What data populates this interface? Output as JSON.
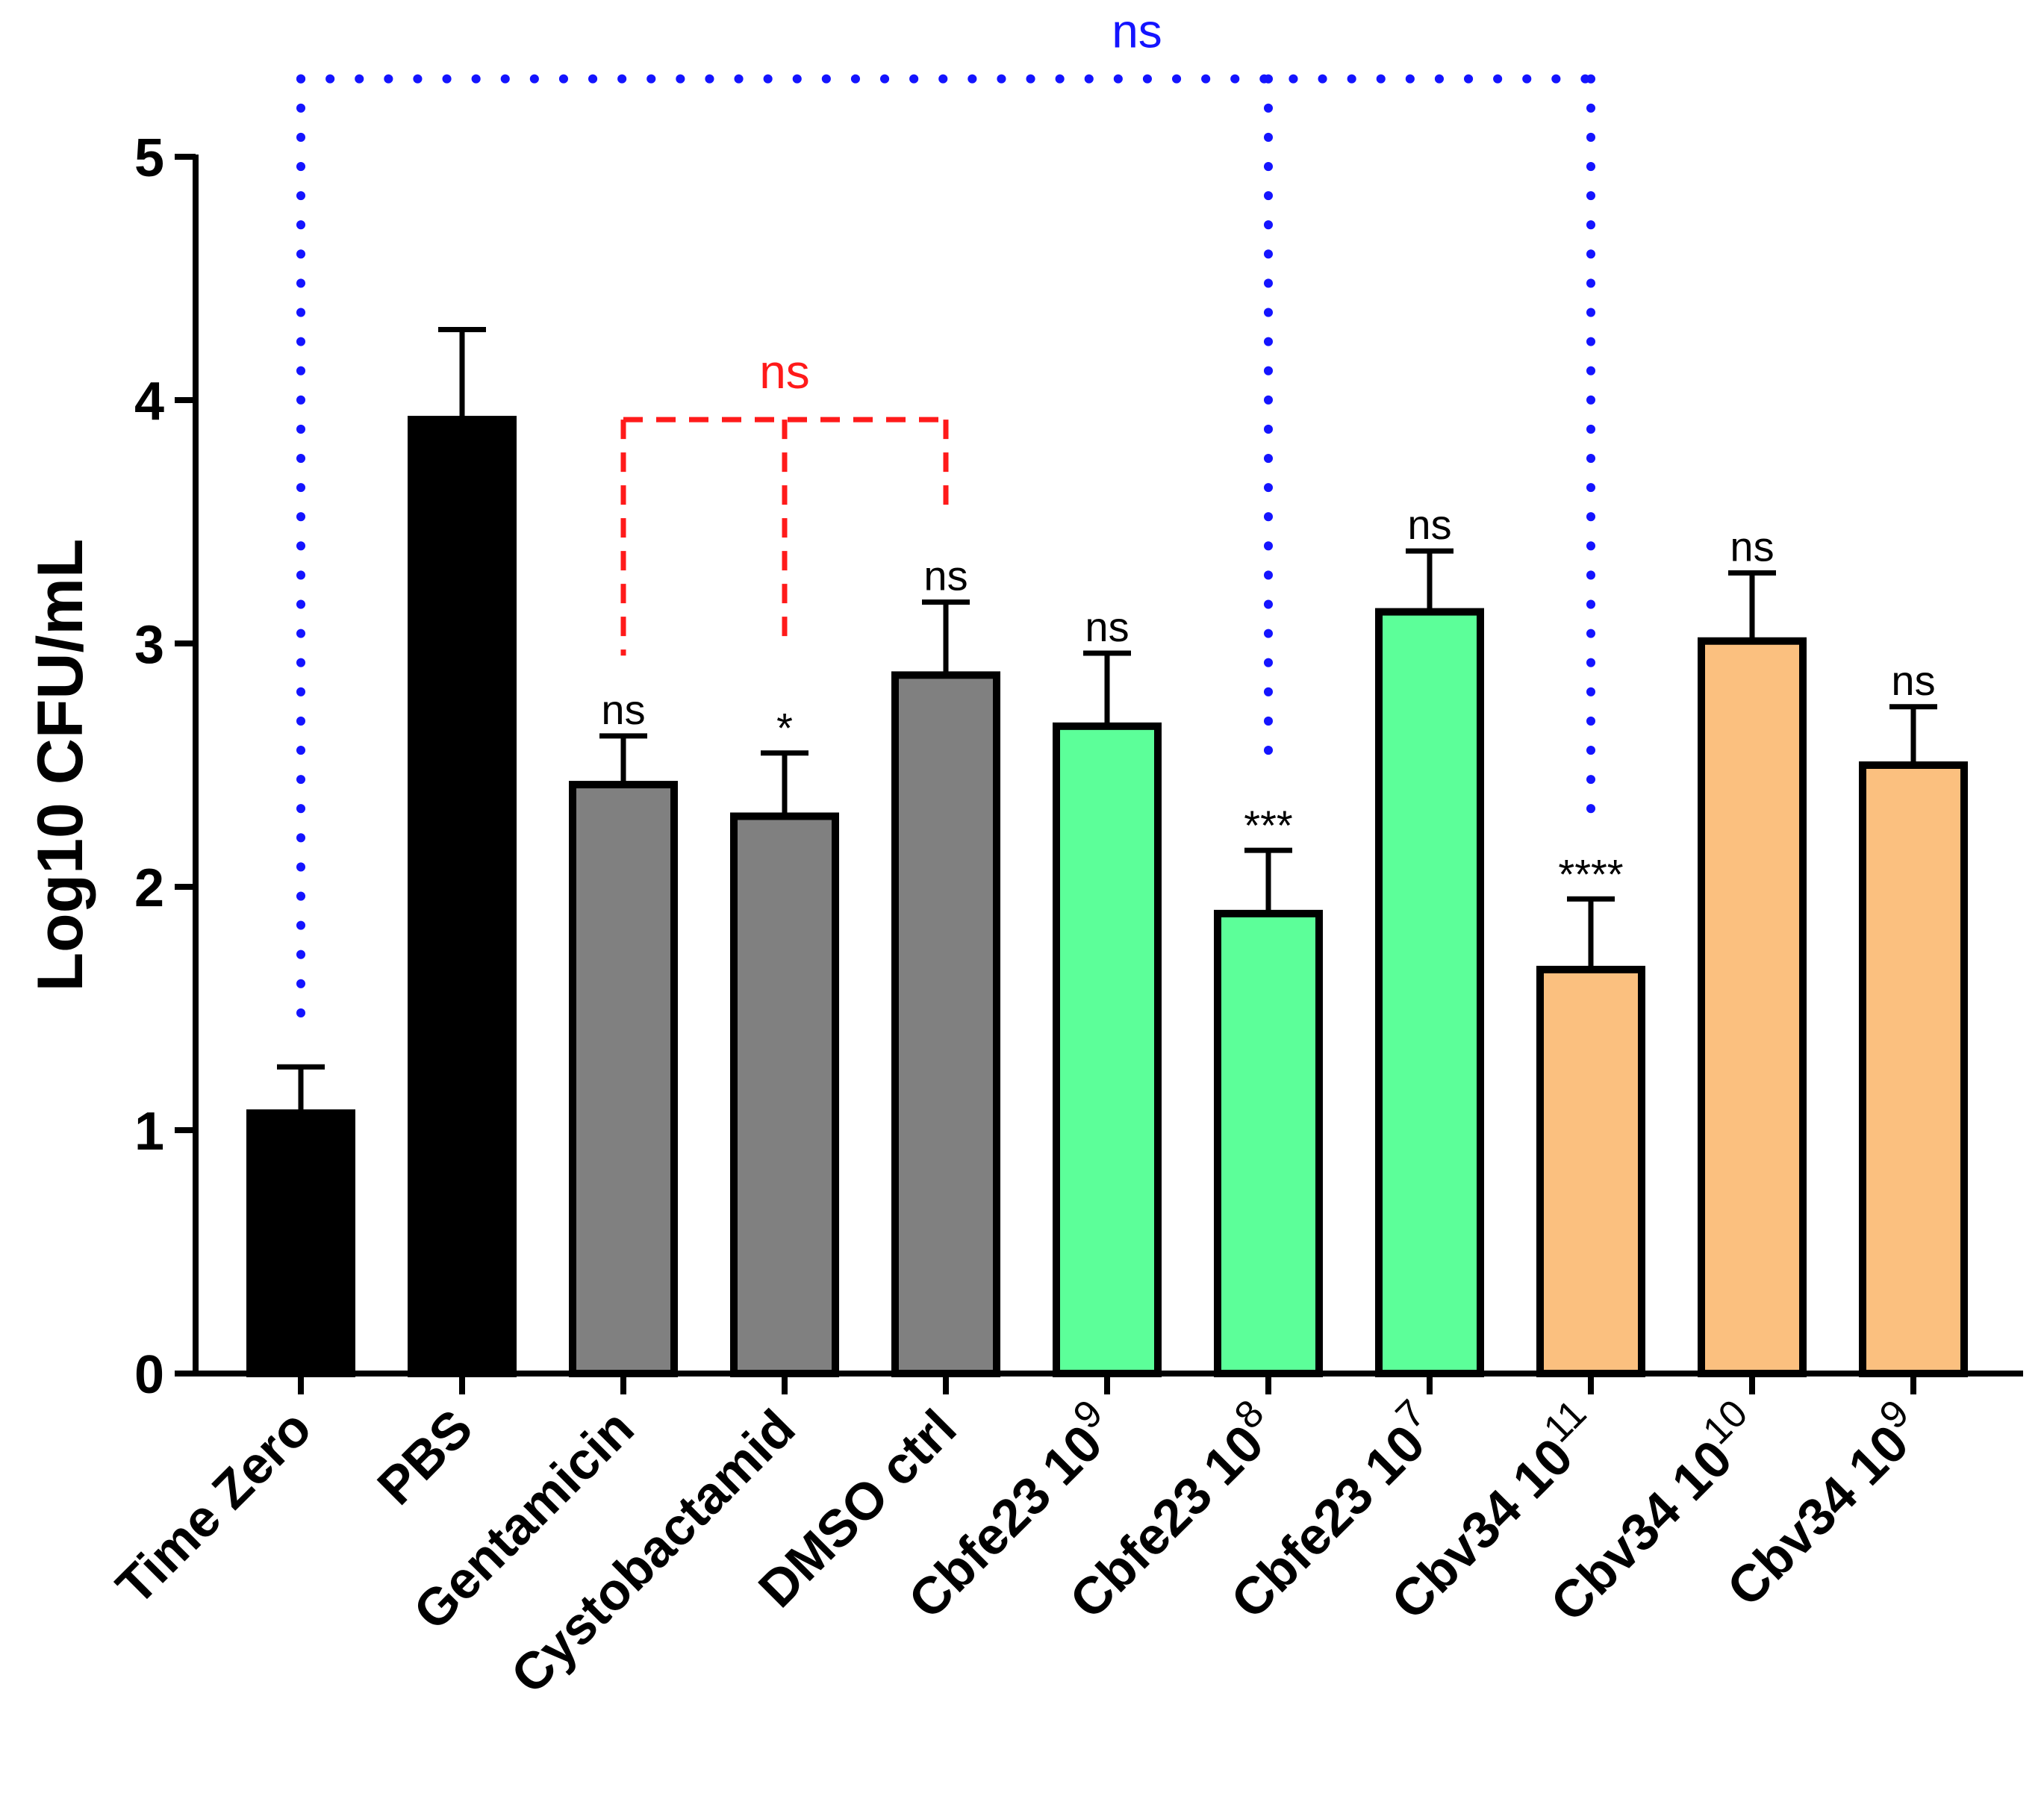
{
  "chart_data": {
    "type": "bar",
    "ylabel": "Log10 CFU/mL",
    "xlabel": "",
    "ylim": [
      0,
      5
    ],
    "yticks": [
      0,
      1,
      2,
      3,
      4,
      5
    ],
    "grid": false,
    "categories": [
      {
        "base": "Time Zero",
        "sup": ""
      },
      {
        "base": "PBS",
        "sup": ""
      },
      {
        "base": "Gentamicin",
        "sup": ""
      },
      {
        "base": "Cystobactamid",
        "sup": ""
      },
      {
        "base": "DMSO ctrl",
        "sup": ""
      },
      {
        "base": "Cbfe23 10",
        "sup": "9"
      },
      {
        "base": "Cbfe23 10",
        "sup": "8"
      },
      {
        "base": "Cbfe23 10",
        "sup": "7"
      },
      {
        "base": "Cbv34 10",
        "sup": "11"
      },
      {
        "base": "Cbv34 10",
        "sup": "10"
      },
      {
        "base": "Cbv34 10",
        "sup": "9"
      }
    ],
    "values": [
      1.07,
      3.92,
      2.42,
      2.29,
      2.87,
      2.66,
      1.89,
      3.13,
      1.66,
      3.01,
      2.5
    ],
    "error_upper": [
      1.26,
      4.29,
      2.62,
      2.55,
      3.17,
      2.96,
      2.15,
      3.38,
      1.95,
      3.29,
      2.74
    ],
    "colors": [
      "#000000",
      "#000000",
      "#808080",
      "#808080",
      "#808080",
      "#5cff99",
      "#5cff99",
      "#5cff99",
      "#fbc07f",
      "#fbc07f",
      "#fbc07f"
    ],
    "significance": [
      "",
      "",
      "ns",
      "*",
      "ns",
      "ns",
      "***",
      "ns",
      "****",
      "ns",
      "ns"
    ],
    "comparisons": [
      {
        "label": "ns",
        "color": "#ff1a1a",
        "style": "dashed",
        "groups": [
          2,
          3,
          4
        ],
        "level": 3.92,
        "ends": [
          2.95,
          2.98,
          3.57
        ]
      },
      {
        "label": "ns",
        "color": "#1414ff",
        "style": "dotted",
        "groups": [
          0,
          6,
          8
        ],
        "level": 5.32,
        "ends": [
          1.45,
          2.45,
          2.27
        ]
      }
    ]
  }
}
